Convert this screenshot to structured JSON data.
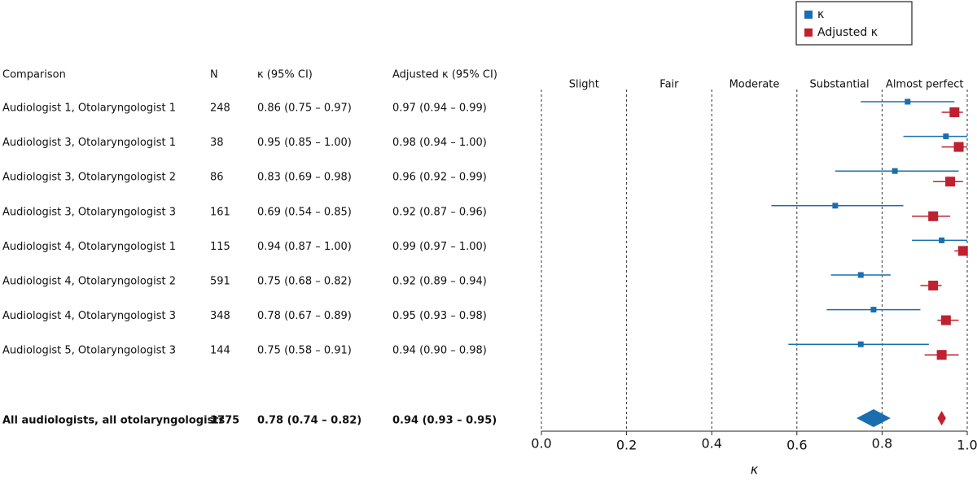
{
  "chart_data": {
    "type": "forest",
    "columns": [
      "Comparison",
      "N",
      "κ (95% CI)",
      "Adjusted κ (95% CI)"
    ],
    "categories": [
      "Audiologist 1, Otolaryngologist 1",
      "Audiologist 3, Otolaryngologist 1",
      "Audiologist 3, Otolaryngologist 2",
      "Audiologist 3, Otolaryngologist 3",
      "Audiologist 4, Otolaryngologist 1",
      "Audiologist 4, Otolaryngologist 2",
      "Audiologist 4, Otolaryngologist 3",
      "Audiologist 5, Otolaryngologist 3",
      "All audiologists, all otolaryngologists"
    ],
    "n": [
      248,
      38,
      86,
      161,
      115,
      591,
      348,
      144,
      1775
    ],
    "series": [
      {
        "name": "κ",
        "color": "#1a6eb0",
        "values": [
          0.86,
          0.95,
          0.83,
          0.69,
          0.94,
          0.75,
          0.78,
          0.75,
          0.78
        ],
        "lower": [
          0.75,
          0.85,
          0.69,
          0.54,
          0.87,
          0.68,
          0.67,
          0.58,
          0.74
        ],
        "upper": [
          0.97,
          1.0,
          0.98,
          0.85,
          1.0,
          0.82,
          0.89,
          0.91,
          0.82
        ],
        "value_labels": [
          "0.86 (0.75 – 0.97)",
          "0.95 (0.85 – 1.00)",
          "0.83 (0.69 – 0.98)",
          "0.69 (0.54 – 0.85)",
          "0.94 (0.87 – 1.00)",
          "0.75 (0.68 – 0.82)",
          "0.78 (0.67 – 0.89)",
          "0.75 (0.58 – 0.91)",
          "0.78 (0.74 – 0.82)"
        ]
      },
      {
        "name": "Adjusted κ",
        "color": "#c0212f",
        "values": [
          0.97,
          0.98,
          0.96,
          0.92,
          0.99,
          0.92,
          0.95,
          0.94,
          0.94
        ],
        "lower": [
          0.94,
          0.94,
          0.92,
          0.87,
          0.97,
          0.89,
          0.93,
          0.9,
          0.93
        ],
        "upper": [
          0.99,
          1.0,
          0.99,
          0.96,
          1.0,
          0.94,
          0.98,
          0.98,
          0.95
        ],
        "value_labels": [
          "0.97 (0.94 – 0.99)",
          "0.98 (0.94 – 1.00)",
          "0.96 (0.92 – 0.99)",
          "0.92 (0.87 – 0.96)",
          "0.99 (0.97 – 1.00)",
          "0.92 (0.89 – 0.94)",
          "0.95 (0.93 – 0.98)",
          "0.94 (0.90 – 0.98)",
          "0.94 (0.93 – 0.95)"
        ]
      }
    ],
    "zones": [
      "Slight",
      "Fair",
      "Moderate",
      "Substantial",
      "Almost perfect"
    ],
    "xlabel": "κ",
    "xlim": [
      0,
      1
    ],
    "xticks": [
      {
        "value": 0,
        "label": "0.0"
      },
      0.2,
      0.4,
      0.6,
      0.8,
      {
        "value": 1,
        "label": "1.0"
      }
    ],
    "grid": true,
    "legend": "top-right"
  }
}
